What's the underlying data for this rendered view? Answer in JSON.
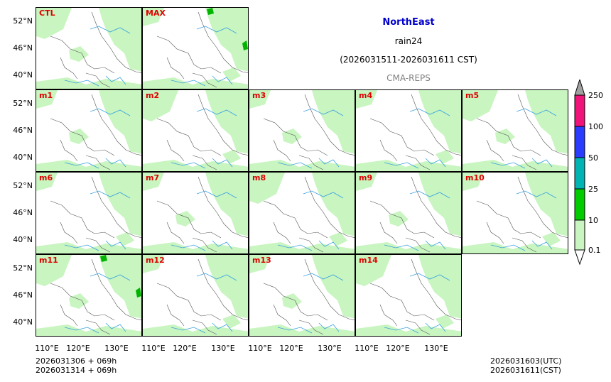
{
  "title": {
    "region": "NorthEast",
    "variable": "rain24",
    "period": "(2026031511-2026031611 CST)",
    "source": "CMA-REPS"
  },
  "panels": [
    "CTL",
    "MAX",
    "m1",
    "m2",
    "m3",
    "m4",
    "m5",
    "m6",
    "m7",
    "m8",
    "m9",
    "m10",
    "m11",
    "m12",
    "m13",
    "m14"
  ],
  "y_axis_labels": [
    "52°N",
    "46°N",
    "40°N"
  ],
  "x_axis_labels": [
    "110°E",
    "120°E",
    "130°E"
  ],
  "colorbar": {
    "levels": [
      "0.1",
      "10",
      "25",
      "50",
      "100",
      "250"
    ],
    "colors": [
      "#c8f5c0",
      "#00cc00",
      "#00b4b4",
      "#2a3cff",
      "#f0147a",
      "#a0a0a0"
    ]
  },
  "footer": {
    "init_utc": "2026031306  +  069h",
    "init_cst": "2026031314  +  069h",
    "valid_utc": "2026031603(UTC)",
    "valid_cst": "2026031611(CST)"
  }
}
